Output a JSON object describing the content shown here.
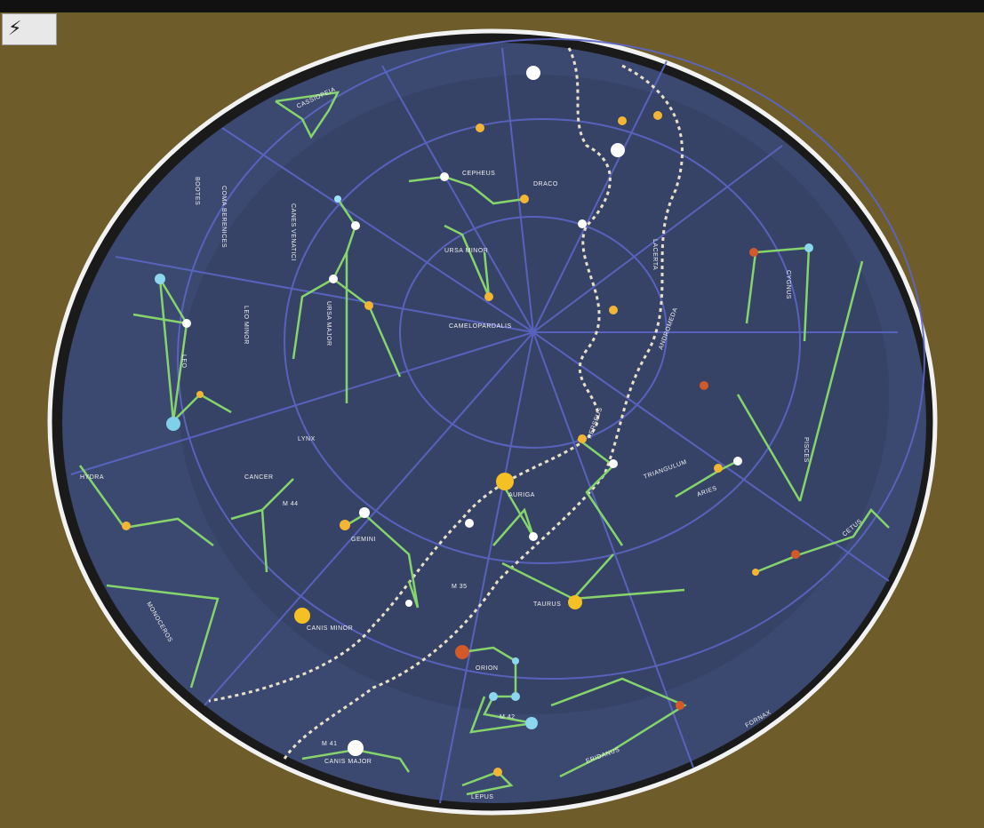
{
  "header": {
    "title": "",
    "subtitle": ""
  },
  "badge": {
    "icon": "plug-icon",
    "glyph": "⚡"
  },
  "colors": {
    "board": "#6b5a2a",
    "sky": "#3a4a74",
    "grid": "#5964c8",
    "lines": "#7fd16a",
    "rim": "#f2f2f2"
  },
  "constellations": {
    "ursa_minor": "URSA MINOR",
    "cassiopeia": "CASSIOPEIA",
    "cepheus": "CEPHEUS",
    "draco": "DRACO",
    "ursa_major": "URSA MAJOR",
    "leo_minor": "LEO MINOR",
    "leo": "LEO",
    "lynx": "LYNX",
    "cancer": "CANCER",
    "m44": "M 44",
    "hydra": "HYDRA",
    "monoceros": "MONOCEROS",
    "canis_minor": "CANIS MINOR",
    "gemini": "GEMINI",
    "m35": "M 35",
    "auriga": "AURIGA",
    "perseus": "PERSEUS",
    "triangulum": "TRIANGULUM",
    "aries": "ARIES",
    "pisces": "PISCES",
    "cetus": "CETUS",
    "taurus": "TAURUS",
    "orion": "ORION",
    "m42": "M 42",
    "eridanus": "ERIDANUS",
    "fornax": "FORNAX",
    "canis_major": "CANIS MAJOR",
    "m41": "M 41",
    "lepus": "LEPUS",
    "camelopardalis": "CAMELOPARDALIS",
    "andromeda": "ANDROMEDA",
    "lacerta": "LACERTA",
    "cygnus": "CYGNUS",
    "canes_venatici": "CANES VENATICI",
    "coma": "COMA BERENICES",
    "bootes": "BOOTES"
  }
}
